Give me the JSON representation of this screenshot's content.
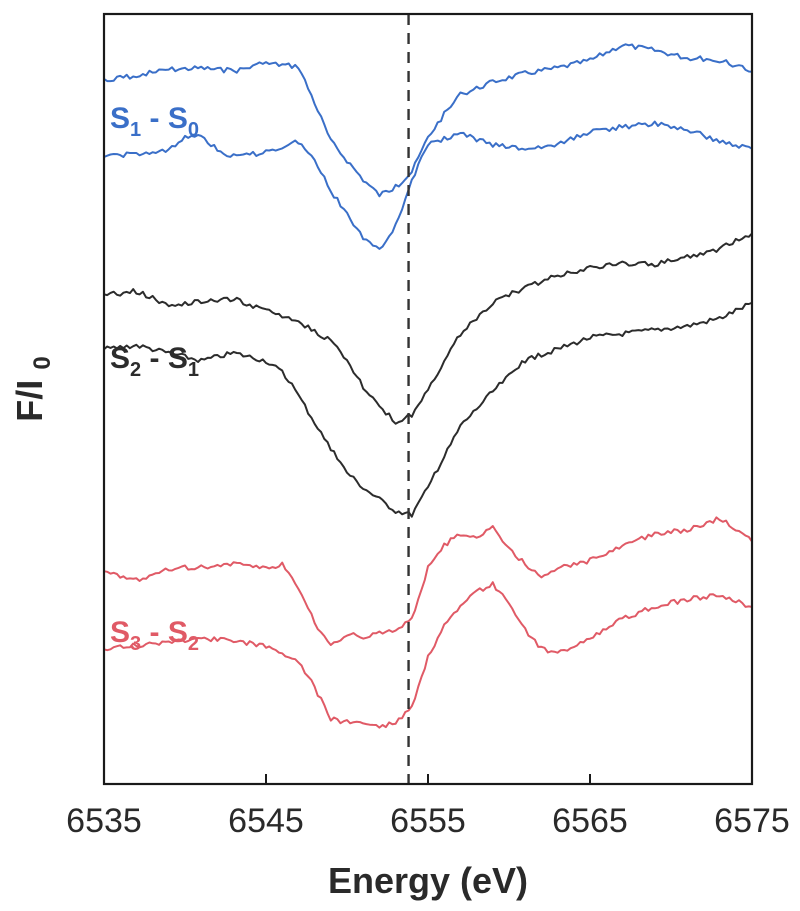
{
  "chart_data": {
    "type": "line",
    "title": "",
    "xlabel": "Energy (eV)",
    "ylabel_main": "F/I",
    "ylabel_sub": "0",
    "xlim": [
      6535,
      6575
    ],
    "ylim": [
      0,
      100
    ],
    "xticks": [
      6535,
      6545,
      6555,
      6565,
      6575
    ],
    "xtick_labels": [
      "6535",
      "6545",
      "6555",
      "6565",
      "6575"
    ],
    "reference_line_x": 6553.8,
    "grid": false,
    "groups": [
      {
        "label_main": "S",
        "label_sub1": "1",
        "label_sep": " - ",
        "label_main2": "S",
        "label_sub2": "0",
        "color": "#3a6fc8",
        "series": [
          {
            "x": [
              6535,
              6537,
              6539,
              6541,
              6543,
              6545,
              6547,
              6548,
              6549,
              6550,
              6551,
              6552,
              6553,
              6554,
              6555,
              6556,
              6557,
              6559,
              6561,
              6563,
              6565,
              6567,
              6569,
              6571,
              6573,
              6575
            ],
            "y": [
              91.5,
              92.0,
              92.8,
              93.0,
              92.6,
              93.6,
              93.2,
              88.5,
              83.5,
              81.0,
              78.5,
              76.5,
              77.5,
              79.5,
              84.0,
              87.0,
              89.5,
              91.2,
              92.3,
              93.0,
              94.0,
              96.0,
              95.3,
              94.3,
              94.0,
              92.5
            ]
          },
          {
            "x": [
              6535,
              6537,
              6539,
              6540,
              6541,
              6542,
              6543,
              6545,
              6547,
              6548,
              6549,
              6550,
              6551,
              6552,
              6553,
              6554,
              6555,
              6557,
              6559,
              6561,
              6563,
              6565,
              6567,
              6569,
              6571,
              6573,
              6575
            ],
            "y": [
              81.5,
              81.8,
              82.2,
              84.0,
              84.3,
              82.3,
              81.5,
              82.0,
              83.5,
              81.0,
              77.0,
              74.0,
              71.0,
              69.5,
              72.5,
              78.5,
              83.0,
              84.5,
              83.0,
              82.5,
              83.0,
              84.8,
              85.3,
              85.8,
              85.0,
              83.5,
              82.5
            ]
          }
        ]
      },
      {
        "label_main": "S",
        "label_sub1": "2",
        "label_sep": " - ",
        "label_main2": "S",
        "label_sub2": "1",
        "color": "#2c2c2c",
        "series": [
          {
            "x": [
              6535,
              6537,
              6539,
              6541,
              6543,
              6545,
              6547,
              6548,
              6549,
              6550,
              6551,
              6552,
              6553,
              6554,
              6555,
              6556,
              6557,
              6559,
              6561,
              6563,
              6565,
              6567,
              6569,
              6571,
              6573,
              6575
            ],
            "y": [
              63.5,
              64.0,
              62.2,
              62.6,
              63.0,
              61.5,
              60.0,
              58.8,
              57.5,
              55.0,
              51.5,
              49.0,
              47.0,
              48.0,
              51.0,
              55.0,
              58.5,
              62.5,
              64.5,
              66.0,
              67.0,
              67.6,
              67.5,
              68.5,
              69.5,
              71.5
            ]
          },
          {
            "x": [
              6535,
              6537,
              6539,
              6541,
              6543,
              6545,
              6546,
              6547,
              6548,
              6549,
              6550,
              6551,
              6552,
              6553,
              6554,
              6555,
              6556,
              6557,
              6559,
              6561,
              6563,
              6565,
              6567,
              6569,
              6571,
              6573,
              6575
            ],
            "y": [
              56.5,
              57.0,
              56.0,
              55.0,
              56.0,
              55.0,
              53.5,
              50.5,
              47.0,
              43.5,
              40.5,
              38.5,
              37.0,
              35.5,
              35.0,
              38.5,
              42.5,
              46.5,
              51.0,
              55.0,
              56.5,
              58.0,
              58.5,
              59.0,
              59.5,
              60.5,
              62.5
            ]
          }
        ]
      },
      {
        "label_main": "S",
        "label_sub1": "3",
        "label_sep": " - ",
        "label_main2": "S",
        "label_sub2": "2",
        "color": "#e05a66",
        "series": [
          {
            "x": [
              6535,
              6537,
              6539,
              6541,
              6543,
              6545,
              6546,
              6547,
              6548,
              6549,
              6550,
              6551,
              6552,
              6553,
              6554,
              6555,
              6556,
              6557,
              6558,
              6559,
              6560,
              6561,
              6562,
              6563,
              6565,
              6567,
              6569,
              6571,
              6573,
              6575
            ],
            "y": [
              27.5,
              26.5,
              28.0,
              28.2,
              28.5,
              28.0,
              28.5,
              25.5,
              21.0,
              18.0,
              19.5,
              19.0,
              19.5,
              20.0,
              21.5,
              28.0,
              31.0,
              32.5,
              32.0,
              33.5,
              30.5,
              28.5,
              27.0,
              28.0,
              29.0,
              31.0,
              32.5,
              33.0,
              34.5,
              31.5
            ]
          },
          {
            "x": [
              6535,
              6537,
              6539,
              6541,
              6543,
              6545,
              6547,
              6548,
              6549,
              6550,
              6551,
              6552,
              6553,
              6554,
              6555,
              6556,
              6557,
              6558,
              6559,
              6560,
              6561,
              6562,
              6563,
              6565,
              6567,
              6569,
              6571,
              6573,
              6575
            ],
            "y": [
              17.5,
              18.0,
              18.5,
              19.0,
              18.5,
              18.0,
              16.0,
              12.5,
              8.5,
              8.0,
              8.0,
              7.5,
              8.0,
              10.0,
              16.5,
              20.5,
              23.0,
              25.0,
              26.0,
              23.5,
              20.0,
              17.5,
              17.0,
              19.0,
              21.5,
              23.0,
              24.0,
              24.5,
              23.0
            ]
          }
        ]
      }
    ]
  }
}
